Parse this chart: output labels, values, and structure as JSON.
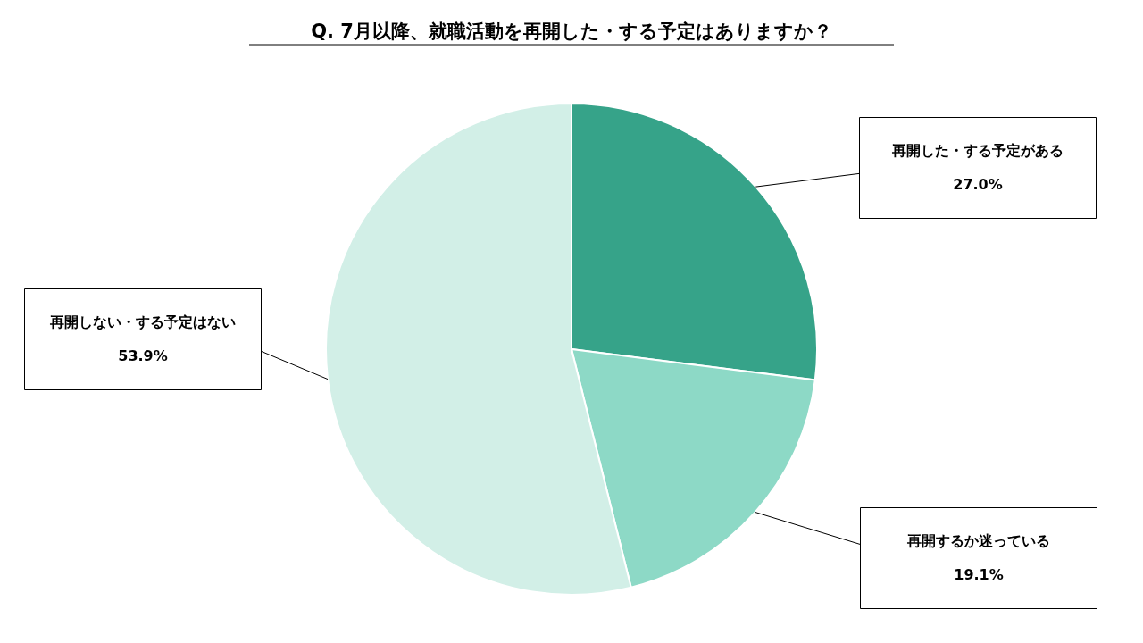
{
  "chart_data": {
    "type": "pie",
    "title": "Q. 7月以降、就職活動を再開した・する予定はありますか？",
    "categories": [
      "再開した・する予定がある",
      "再開するか迷っている",
      "再開しない・する予定はない"
    ],
    "values": [
      27.0,
      19.1,
      53.9
    ],
    "colors": [
      "#36a389",
      "#8dd9c6",
      "#d2efe7"
    ],
    "value_labels": [
      "27.0%",
      "19.1%",
      "53.9%"
    ]
  }
}
